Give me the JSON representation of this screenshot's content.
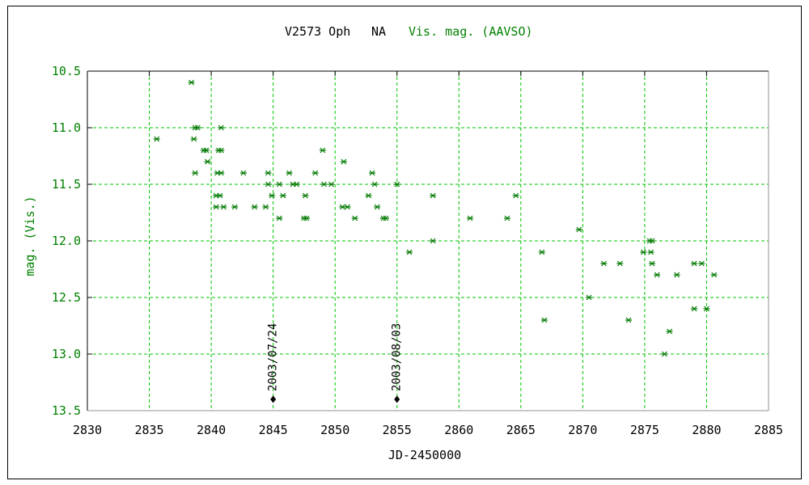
{
  "chart_data": {
    "type": "scatter",
    "title_parts": [
      {
        "text": "V2573 Oph",
        "color": "#000000"
      },
      {
        "text": "NA",
        "color": "#000000"
      },
      {
        "text": "Vis. mag. (AAVSO)",
        "color": "#008000"
      }
    ],
    "xlabel": "JD-2450000",
    "ylabel": "mag. (Vis.)",
    "xlim": [
      2830,
      2885
    ],
    "ylim": [
      10.5,
      13.5
    ],
    "y_axis_inverted": true,
    "x_ticks": [
      2830,
      2835,
      2840,
      2845,
      2850,
      2855,
      2860,
      2865,
      2870,
      2875,
      2880,
      2885
    ],
    "y_ticks": [
      10.5,
      11.0,
      11.5,
      12.0,
      12.5,
      13.0,
      13.5
    ],
    "grid": true,
    "colors": {
      "grid": "#00c400",
      "marker": "#077d07",
      "y_axis_text": "#008000",
      "x_axis_text": "#000000",
      "frame_top_left": "#000000",
      "frame_bottom_right": "#909090",
      "annotation": "#000000"
    },
    "series": [
      {
        "name": "Vis. mag. (AAVSO)",
        "marker": "asterisk",
        "color": "#077d07",
        "points": [
          [
            2835.6,
            11.1
          ],
          [
            2838.4,
            10.6
          ],
          [
            2838.6,
            11.1
          ],
          [
            2838.7,
            11.0
          ],
          [
            2838.9,
            11.0
          ],
          [
            2838.7,
            11.4
          ],
          [
            2839.4,
            11.2
          ],
          [
            2839.6,
            11.2
          ],
          [
            2839.7,
            11.3
          ],
          [
            2840.4,
            11.6
          ],
          [
            2840.4,
            11.7
          ],
          [
            2840.5,
            11.4
          ],
          [
            2840.6,
            11.2
          ],
          [
            2840.7,
            11.6
          ],
          [
            2840.8,
            11.0
          ],
          [
            2840.8,
            11.2
          ],
          [
            2840.8,
            11.4
          ],
          [
            2841.0,
            11.7
          ],
          [
            2841.9,
            11.7
          ],
          [
            2842.6,
            11.4
          ],
          [
            2843.5,
            11.7
          ],
          [
            2844.4,
            11.7
          ],
          [
            2844.6,
            11.4
          ],
          [
            2844.6,
            11.5
          ],
          [
            2844.9,
            11.6
          ],
          [
            2845.5,
            11.5
          ],
          [
            2845.5,
            11.8
          ],
          [
            2845.8,
            11.6
          ],
          [
            2846.3,
            11.4
          ],
          [
            2846.6,
            11.5
          ],
          [
            2846.9,
            11.5
          ],
          [
            2847.5,
            11.8
          ],
          [
            2847.6,
            11.6
          ],
          [
            2847.7,
            11.8
          ],
          [
            2848.4,
            11.4
          ],
          [
            2849.0,
            11.2
          ],
          [
            2849.1,
            11.5
          ],
          [
            2849.7,
            11.5
          ],
          [
            2850.6,
            11.7
          ],
          [
            2850.7,
            11.3
          ],
          [
            2851.0,
            11.7
          ],
          [
            2851.6,
            11.8
          ],
          [
            2852.7,
            11.6
          ],
          [
            2853.0,
            11.4
          ],
          [
            2853.2,
            11.5
          ],
          [
            2853.4,
            11.7
          ],
          [
            2853.9,
            11.8
          ],
          [
            2854.1,
            11.8
          ],
          [
            2855.0,
            11.5
          ],
          [
            2856.0,
            12.1
          ],
          [
            2857.9,
            11.6
          ],
          [
            2857.9,
            12.0
          ],
          [
            2860.9,
            11.8
          ],
          [
            2863.9,
            11.8
          ],
          [
            2864.6,
            11.6
          ],
          [
            2866.7,
            12.1
          ],
          [
            2866.9,
            12.7
          ],
          [
            2869.7,
            11.9
          ],
          [
            2870.5,
            12.5
          ],
          [
            2871.7,
            12.2
          ],
          [
            2873.0,
            12.2
          ],
          [
            2873.7,
            12.7
          ],
          [
            2874.9,
            12.1
          ],
          [
            2875.4,
            12.0
          ],
          [
            2875.6,
            12.0
          ],
          [
            2875.5,
            12.1
          ],
          [
            2875.6,
            12.2
          ],
          [
            2876.0,
            12.3
          ],
          [
            2876.6,
            13.0
          ],
          [
            2877.0,
            12.8
          ],
          [
            2877.6,
            12.3
          ],
          [
            2879.0,
            12.2
          ],
          [
            2879.6,
            12.2
          ],
          [
            2879.0,
            12.6
          ],
          [
            2880.0,
            12.6
          ],
          [
            2880.6,
            12.3
          ]
        ]
      }
    ],
    "annotations": [
      {
        "label": "2003/07/24",
        "x": 2845,
        "y": 13.4,
        "marker": "diamond",
        "color": "#000000"
      },
      {
        "label": "2003/08/03",
        "x": 2855,
        "y": 13.4,
        "marker": "diamond",
        "color": "#000000"
      }
    ]
  }
}
